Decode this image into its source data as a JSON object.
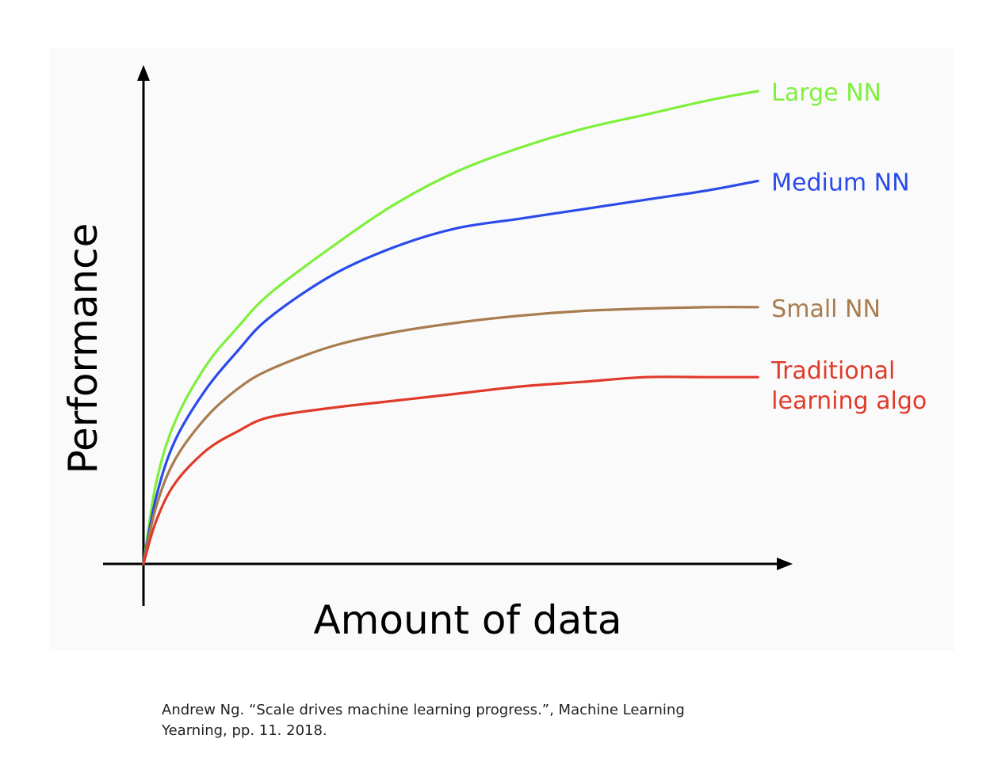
{
  "chart_data": {
    "type": "line",
    "xlabel": "Amount of data",
    "ylabel": "Performance",
    "xlim": [
      0,
      100
    ],
    "ylim": [
      0,
      100
    ],
    "grid": false,
    "axis_colors": {
      "axes": "#000000"
    },
    "series": [
      {
        "name": "Large NN",
        "label_lines": [
          "Large NN"
        ],
        "color": "#7ef03c",
        "x": [
          0,
          2,
          5,
          10,
          15,
          20,
          30,
          40,
          50,
          60,
          70,
          80,
          90,
          98
        ],
        "y": [
          0,
          17,
          30,
          42,
          50,
          57,
          67,
          76,
          83,
          88,
          92,
          95,
          98,
          100
        ]
      },
      {
        "name": "Medium NN",
        "label_lines": [
          "Medium NN"
        ],
        "color": "#2a4bea",
        "x": [
          0,
          2,
          5,
          10,
          15,
          20,
          30,
          40,
          50,
          60,
          70,
          80,
          90,
          98
        ],
        "y": [
          0,
          14,
          26,
          37,
          45,
          52,
          61,
          67,
          71,
          73,
          75,
          77,
          79,
          81
        ]
      },
      {
        "name": "Small NN",
        "label_lines": [
          "Small NN"
        ],
        "color": "#a87c4f",
        "x": [
          0,
          2,
          5,
          10,
          15,
          20,
          30,
          40,
          50,
          60,
          70,
          80,
          90,
          98
        ],
        "y": [
          0,
          12,
          22,
          31,
          37,
          41,
          46,
          49,
          51,
          52.5,
          53.5,
          54,
          54.3,
          54.3
        ]
      },
      {
        "name": "Traditional learning algo",
        "label_lines": [
          "Traditional",
          "learning algo"
        ],
        "color": "#e03a2a",
        "x": [
          0,
          2,
          5,
          10,
          15,
          20,
          30,
          40,
          50,
          60,
          70,
          80,
          90,
          98
        ],
        "y": [
          0,
          9,
          17,
          24,
          28,
          31,
          33,
          34.5,
          36,
          37.5,
          38.5,
          39.5,
          39.5,
          39.5
        ]
      }
    ]
  },
  "citation": {
    "line1": "Andrew Ng. “Scale drives machine learning progress.”, Machine Learning",
    "line2": "Yearning, pp. 11. 2018."
  }
}
